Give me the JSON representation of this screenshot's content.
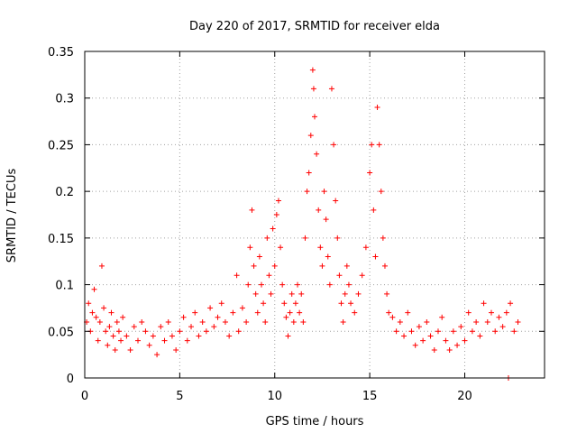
{
  "chart_data": {
    "type": "scatter",
    "title": "Day 220 of 2017, SRMTID for receiver elda",
    "xlabel": "GPS time / hours",
    "ylabel": "SRMTID / TECUs",
    "xlim": [
      0,
      24.2
    ],
    "ylim": [
      0,
      0.35
    ],
    "x_ticks": [
      0,
      5,
      10,
      15,
      20
    ],
    "x_tick_labels": [
      "0",
      "5",
      "10",
      "15",
      "20"
    ],
    "y_ticks": [
      0,
      0.05,
      0.1,
      0.15,
      0.2,
      0.25,
      0.3,
      0.35
    ],
    "y_tick_labels": [
      "0",
      "0.05",
      "0.1",
      "0.15",
      "0.2",
      "0.25",
      "0.3",
      "0.35"
    ],
    "grid": true,
    "marker": "plus",
    "color": "#ff0000",
    "series": [
      {
        "name": "SRMTID",
        "points": [
          [
            0.1,
            0.06
          ],
          [
            0.2,
            0.08
          ],
          [
            0.3,
            0.05
          ],
          [
            0.4,
            0.07
          ],
          [
            0.5,
            0.095
          ],
          [
            0.6,
            0.065
          ],
          [
            0.7,
            0.04
          ],
          [
            0.8,
            0.06
          ],
          [
            0.9,
            0.12
          ],
          [
            1.0,
            0.075
          ],
          [
            1.1,
            0.05
          ],
          [
            1.2,
            0.035
          ],
          [
            1.3,
            0.055
          ],
          [
            1.4,
            0.07
          ],
          [
            1.5,
            0.045
          ],
          [
            1.6,
            0.03
          ],
          [
            1.7,
            0.06
          ],
          [
            1.8,
            0.05
          ],
          [
            1.9,
            0.04
          ],
          [
            2.0,
            0.065
          ],
          [
            2.2,
            0.045
          ],
          [
            2.4,
            0.03
          ],
          [
            2.6,
            0.055
          ],
          [
            2.8,
            0.04
          ],
          [
            3.0,
            0.06
          ],
          [
            3.2,
            0.05
          ],
          [
            3.4,
            0.035
          ],
          [
            3.6,
            0.045
          ],
          [
            3.8,
            0.025
          ],
          [
            4.0,
            0.055
          ],
          [
            4.2,
            0.04
          ],
          [
            4.4,
            0.06
          ],
          [
            4.6,
            0.045
          ],
          [
            4.8,
            0.03
          ],
          [
            5.0,
            0.05
          ],
          [
            5.2,
            0.065
          ],
          [
            5.4,
            0.04
          ],
          [
            5.6,
            0.055
          ],
          [
            5.8,
            0.07
          ],
          [
            6.0,
            0.045
          ],
          [
            6.2,
            0.06
          ],
          [
            6.4,
            0.05
          ],
          [
            6.6,
            0.075
          ],
          [
            6.8,
            0.055
          ],
          [
            7.0,
            0.065
          ],
          [
            7.2,
            0.08
          ],
          [
            7.4,
            0.06
          ],
          [
            7.6,
            0.045
          ],
          [
            7.8,
            0.07
          ],
          [
            8.0,
            0.11
          ],
          [
            8.1,
            0.05
          ],
          [
            8.3,
            0.075
          ],
          [
            8.5,
            0.06
          ],
          [
            8.6,
            0.1
          ],
          [
            8.7,
            0.14
          ],
          [
            8.8,
            0.18
          ],
          [
            8.9,
            0.12
          ],
          [
            9.0,
            0.09
          ],
          [
            9.1,
            0.07
          ],
          [
            9.2,
            0.13
          ],
          [
            9.3,
            0.1
          ],
          [
            9.4,
            0.08
          ],
          [
            9.5,
            0.06
          ],
          [
            9.6,
            0.15
          ],
          [
            9.7,
            0.11
          ],
          [
            9.8,
            0.09
          ],
          [
            9.9,
            0.16
          ],
          [
            10.0,
            0.12
          ],
          [
            10.1,
            0.175
          ],
          [
            10.2,
            0.19
          ],
          [
            10.3,
            0.14
          ],
          [
            10.4,
            0.1
          ],
          [
            10.5,
            0.08
          ],
          [
            10.6,
            0.065
          ],
          [
            10.7,
            0.045
          ],
          [
            10.8,
            0.07
          ],
          [
            10.9,
            0.09
          ],
          [
            11.0,
            0.06
          ],
          [
            11.1,
            0.08
          ],
          [
            11.2,
            0.1
          ],
          [
            11.3,
            0.07
          ],
          [
            11.4,
            0.09
          ],
          [
            11.5,
            0.06
          ],
          [
            11.6,
            0.15
          ],
          [
            11.7,
            0.2
          ],
          [
            11.8,
            0.22
          ],
          [
            11.9,
            0.26
          ],
          [
            12.0,
            0.33
          ],
          [
            12.05,
            0.31
          ],
          [
            12.1,
            0.28
          ],
          [
            12.2,
            0.24
          ],
          [
            12.3,
            0.18
          ],
          [
            12.4,
            0.14
          ],
          [
            12.5,
            0.12
          ],
          [
            12.6,
            0.2
          ],
          [
            12.7,
            0.17
          ],
          [
            12.8,
            0.13
          ],
          [
            12.9,
            0.1
          ],
          [
            13.0,
            0.31
          ],
          [
            13.1,
            0.25
          ],
          [
            13.2,
            0.19
          ],
          [
            13.3,
            0.15
          ],
          [
            13.4,
            0.11
          ],
          [
            13.5,
            0.08
          ],
          [
            13.6,
            0.06
          ],
          [
            13.7,
            0.09
          ],
          [
            13.8,
            0.12
          ],
          [
            13.9,
            0.1
          ],
          [
            14.0,
            0.08
          ],
          [
            14.2,
            0.07
          ],
          [
            14.4,
            0.09
          ],
          [
            14.6,
            0.11
          ],
          [
            14.8,
            0.14
          ],
          [
            15.0,
            0.22
          ],
          [
            15.1,
            0.25
          ],
          [
            15.2,
            0.18
          ],
          [
            15.3,
            0.13
          ],
          [
            15.4,
            0.29
          ],
          [
            15.5,
            0.25
          ],
          [
            15.6,
            0.2
          ],
          [
            15.7,
            0.15
          ],
          [
            15.8,
            0.12
          ],
          [
            15.9,
            0.09
          ],
          [
            16.0,
            0.07
          ],
          [
            16.2,
            0.065
          ],
          [
            16.4,
            0.05
          ],
          [
            16.6,
            0.06
          ],
          [
            16.8,
            0.045
          ],
          [
            17.0,
            0.07
          ],
          [
            17.2,
            0.05
          ],
          [
            17.4,
            0.035
          ],
          [
            17.6,
            0.055
          ],
          [
            17.8,
            0.04
          ],
          [
            18.0,
            0.06
          ],
          [
            18.2,
            0.045
          ],
          [
            18.4,
            0.03
          ],
          [
            18.6,
            0.05
          ],
          [
            18.8,
            0.065
          ],
          [
            19.0,
            0.04
          ],
          [
            19.2,
            0.03
          ],
          [
            19.4,
            0.05
          ],
          [
            19.6,
            0.035
          ],
          [
            19.8,
            0.055
          ],
          [
            20.0,
            0.04
          ],
          [
            20.2,
            0.07
          ],
          [
            20.4,
            0.05
          ],
          [
            20.6,
            0.06
          ],
          [
            20.8,
            0.045
          ],
          [
            21.0,
            0.08
          ],
          [
            21.2,
            0.06
          ],
          [
            21.4,
            0.07
          ],
          [
            21.6,
            0.05
          ],
          [
            21.8,
            0.065
          ],
          [
            22.0,
            0.055
          ],
          [
            22.2,
            0.07
          ],
          [
            22.4,
            0.08
          ],
          [
            22.6,
            0.05
          ],
          [
            22.8,
            0.06
          ],
          [
            22.3,
            0.0
          ]
        ]
      }
    ]
  }
}
